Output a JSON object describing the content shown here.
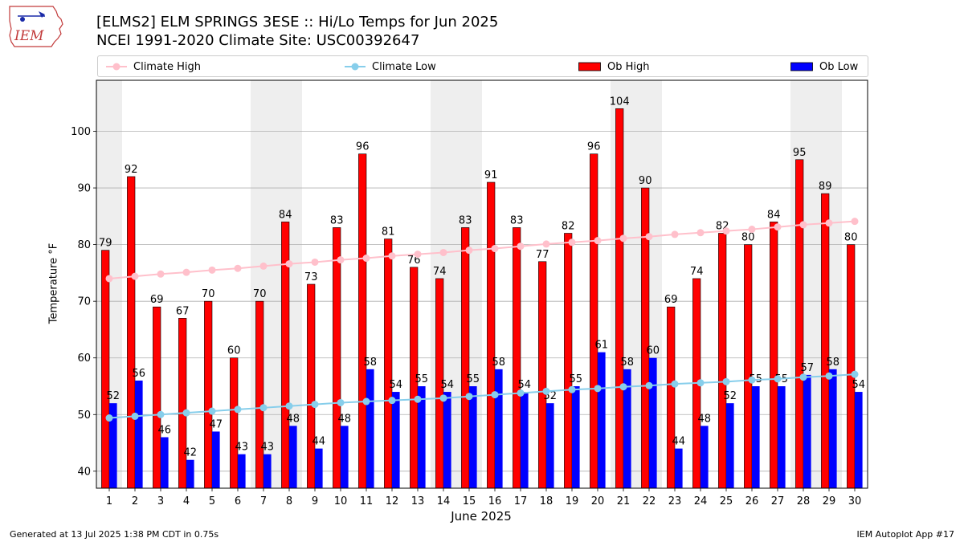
{
  "header": {
    "title_line1": "[ELMS2] ELM SPRINGS 3ESE :: Hi/Lo Temps for Jun 2025",
    "title_line2": "NCEI 1991-2020 Climate Site: USC00392647",
    "logo_text": "IEM"
  },
  "legend": {
    "climate_high": "Climate High",
    "climate_low": "Climate Low",
    "ob_high": "Ob High",
    "ob_low": "Ob Low"
  },
  "footer": {
    "generated": "Generated at 13 Jul 2025 1:38 PM CDT in 0.75s",
    "app": "IEM Autoplot App #17"
  },
  "colors": {
    "ob_high": "#ff0000",
    "ob_low": "#0000ff",
    "climate_high": "#ffc0cb",
    "climate_low": "#87ceeb",
    "weekend_shade": "#eeeeee",
    "grid": "#b0b0b0"
  },
  "chart_data": {
    "type": "bar",
    "xlabel": "June 2025",
    "ylabel": "Temperature °F",
    "ylim": [
      37,
      109
    ],
    "xlim": [
      0.5,
      30.5
    ],
    "yticks": [
      40,
      50,
      60,
      70,
      80,
      90,
      100
    ],
    "days": [
      1,
      2,
      3,
      4,
      5,
      6,
      7,
      8,
      9,
      10,
      11,
      12,
      13,
      14,
      15,
      16,
      17,
      18,
      19,
      20,
      21,
      22,
      23,
      24,
      25,
      26,
      27,
      28,
      29,
      30
    ],
    "shaded_ranges": [
      [
        0.5,
        1.5
      ],
      [
        6.5,
        8.5
      ],
      [
        13.5,
        15.5
      ],
      [
        20.5,
        22.5
      ],
      [
        27.5,
        29.5
      ]
    ],
    "series": [
      {
        "name": "Ob High",
        "kind": "bar",
        "values": [
          79,
          92,
          69,
          67,
          70,
          60,
          70,
          84,
          73,
          83,
          96,
          81,
          76,
          74,
          83,
          91,
          83,
          77,
          82,
          96,
          104,
          90,
          69,
          74,
          82,
          80,
          84,
          95,
          89,
          80
        ]
      },
      {
        "name": "Ob Low",
        "kind": "bar",
        "values": [
          52,
          56,
          46,
          42,
          47,
          43,
          43,
          48,
          44,
          48,
          58,
          54,
          55,
          54,
          55,
          58,
          54,
          52,
          55,
          61,
          58,
          60,
          44,
          48,
          52,
          55,
          55,
          57,
          58,
          54
        ]
      },
      {
        "name": "Climate High",
        "kind": "line",
        "values": [
          74.0,
          74.4,
          74.8,
          75.1,
          75.5,
          75.8,
          76.2,
          76.6,
          76.9,
          77.3,
          77.6,
          78.0,
          78.3,
          78.6,
          79.0,
          79.3,
          79.7,
          80.1,
          80.4,
          80.7,
          81.1,
          81.4,
          81.8,
          82.1,
          82.4,
          82.7,
          83.1,
          83.5,
          83.8,
          84.1
        ]
      },
      {
        "name": "Climate Low",
        "kind": "line",
        "values": [
          49.4,
          49.7,
          50.0,
          50.3,
          50.6,
          50.9,
          51.2,
          51.5,
          51.8,
          52.1,
          52.3,
          52.5,
          52.7,
          52.9,
          53.2,
          53.5,
          53.8,
          54.1,
          54.4,
          54.6,
          54.9,
          55.1,
          55.4,
          55.6,
          55.8,
          56.1,
          56.3,
          56.6,
          56.8,
          57.1
        ]
      }
    ]
  }
}
